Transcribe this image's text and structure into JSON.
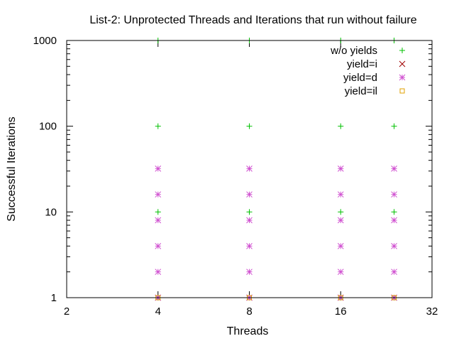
{
  "chart_data": {
    "type": "scatter",
    "title": "List-2: Unprotected Threads and Iterations that run without failure",
    "xlabel": "Threads",
    "ylabel": "Successful Iterations",
    "xscale": "log2",
    "yscale": "log10",
    "xlim": [
      2,
      32
    ],
    "ylim": [
      1,
      1000
    ],
    "xticks": [
      2,
      4,
      8,
      16,
      32
    ],
    "yticks": [
      1,
      10,
      100,
      1000
    ],
    "grid": false,
    "legend_position": "top-right",
    "series": [
      {
        "name": "w/o yields",
        "marker": "plus",
        "color": "#00c000",
        "points": [
          [
            4,
            1
          ],
          [
            4,
            10
          ],
          [
            4,
            100
          ],
          [
            4,
            1000
          ],
          [
            8,
            1
          ],
          [
            8,
            10
          ],
          [
            8,
            100
          ],
          [
            8,
            1000
          ],
          [
            16,
            1
          ],
          [
            16,
            10
          ],
          [
            16,
            100
          ],
          [
            16,
            1000
          ],
          [
            24,
            1
          ],
          [
            24,
            10
          ],
          [
            24,
            100
          ],
          [
            24,
            1000
          ]
        ]
      },
      {
        "name": "yield=i",
        "marker": "cross",
        "color": "#a00000",
        "points": [
          [
            4,
            1
          ],
          [
            8,
            1
          ],
          [
            16,
            1
          ],
          [
            24,
            1
          ]
        ]
      },
      {
        "name": "yield=d",
        "marker": "star",
        "color": "#d050d0",
        "points": [
          [
            4,
            1
          ],
          [
            4,
            2
          ],
          [
            4,
            4
          ],
          [
            4,
            8
          ],
          [
            4,
            16
          ],
          [
            4,
            32
          ],
          [
            8,
            1
          ],
          [
            8,
            2
          ],
          [
            8,
            4
          ],
          [
            8,
            8
          ],
          [
            8,
            16
          ],
          [
            8,
            32
          ],
          [
            16,
            1
          ],
          [
            16,
            2
          ],
          [
            16,
            4
          ],
          [
            16,
            8
          ],
          [
            16,
            16
          ],
          [
            16,
            32
          ],
          [
            24,
            1
          ],
          [
            24,
            2
          ],
          [
            24,
            4
          ],
          [
            24,
            8
          ],
          [
            24,
            16
          ],
          [
            24,
            32
          ]
        ]
      },
      {
        "name": "yield=il",
        "marker": "square",
        "color": "#e0a000",
        "points": [
          [
            4,
            1
          ],
          [
            8,
            1
          ],
          [
            16,
            1
          ],
          [
            24,
            1
          ]
        ]
      }
    ]
  }
}
